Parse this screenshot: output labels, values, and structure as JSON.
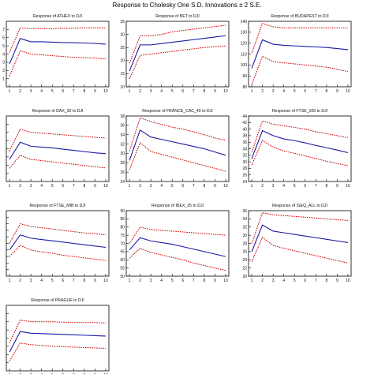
{
  "page_title": "Response to Cholesky One S.D. Innovations ± 2 S.E.",
  "chart_data": [
    {
      "type": "line",
      "title": "Response of ATHEX to DJI",
      "x": [
        1,
        2,
        3,
        4,
        5,
        6,
        7,
        8,
        9,
        10
      ],
      "xticks": [
        1,
        2,
        3,
        4,
        5,
        6,
        7,
        8,
        9,
        10
      ],
      "ylim": [
        0,
        8
      ],
      "yticks": [
        1,
        2,
        3,
        4,
        5,
        6,
        7
      ],
      "ytick_labels": [
        "1",
        "2",
        "3",
        "4",
        "5",
        "6",
        "7"
      ],
      "series": [
        {
          "role": "response",
          "color": "#1a1aa6",
          "style": "solid",
          "values": [
            2.8,
            5.9,
            5.5,
            5.5,
            5.45,
            5.4,
            5.38,
            5.35,
            5.3,
            5.2
          ]
        },
        {
          "role": "upper",
          "color": "#cc0000",
          "style": "dotted",
          "values": [
            4.2,
            7.2,
            7.1,
            7.1,
            7.1,
            7.15,
            7.15,
            7.2,
            7.2,
            7.2
          ]
        },
        {
          "role": "lower",
          "color": "#cc0000",
          "style": "dotted",
          "values": [
            1.3,
            4.4,
            4.0,
            3.9,
            3.8,
            3.7,
            3.6,
            3.55,
            3.5,
            3.4
          ]
        }
      ]
    },
    {
      "type": "line",
      "title": "Response of BET to DJI",
      "x": [
        1,
        2,
        3,
        4,
        5,
        6,
        7,
        8,
        9,
        10
      ],
      "xticks": [
        1,
        2,
        3,
        4,
        5,
        6,
        7,
        8,
        9,
        10
      ],
      "ylim": [
        10,
        35
      ],
      "yticks": [
        10,
        15,
        20,
        25,
        30,
        35
      ],
      "ytick_labels": [
        "10",
        "15",
        "20",
        "25",
        "30",
        "35"
      ],
      "series": [
        {
          "role": "response",
          "color": "#1a1aa6",
          "style": "solid",
          "values": [
            16,
            26,
            26,
            26.5,
            27,
            27.5,
            28,
            28.5,
            29,
            29.5
          ]
        },
        {
          "role": "upper",
          "color": "#cc0000",
          "style": "dotted",
          "values": [
            19,
            29.5,
            29.5,
            30,
            31,
            31.5,
            32,
            32.5,
            33,
            33.5
          ]
        },
        {
          "role": "lower",
          "color": "#cc0000",
          "style": "dotted",
          "values": [
            13,
            22,
            22.5,
            23,
            23.5,
            24,
            24.5,
            25,
            25.3,
            25.6
          ]
        }
      ]
    },
    {
      "type": "line",
      "title": "Response of BUDAPEST to DJI",
      "x": [
        1,
        2,
        3,
        4,
        5,
        6,
        7,
        8,
        9,
        10
      ],
      "xticks": [
        1,
        2,
        3,
        4,
        5,
        6,
        7,
        8,
        9,
        10
      ],
      "ylim": [
        80,
        140
      ],
      "yticks": [
        80,
        90,
        100,
        110,
        120,
        130,
        140
      ],
      "ytick_labels": [
        "80",
        "90",
        "100",
        "110",
        "120",
        "130",
        "140"
      ],
      "series": [
        {
          "role": "response",
          "color": "#1a1aa6",
          "style": "solid",
          "values": [
            97,
            123,
            119,
            118,
            117.5,
            117,
            116.5,
            116,
            115,
            114
          ]
        },
        {
          "role": "upper",
          "color": "#cc0000",
          "style": "dotted",
          "values": [
            111,
            138,
            135,
            134,
            134,
            134,
            134,
            134,
            134,
            134
          ]
        },
        {
          "role": "lower",
          "color": "#cc0000",
          "style": "dotted",
          "values": [
            82,
            108,
            103,
            102,
            101,
            100,
            99,
            98,
            96,
            94
          ]
        }
      ]
    },
    {
      "type": "line",
      "title": "Response of DAX_30 to DJI",
      "x": [
        1,
        2,
        3,
        4,
        5,
        6,
        7,
        8,
        9,
        10
      ],
      "xticks": [
        1,
        2,
        3,
        4,
        5,
        6,
        7,
        8,
        9,
        10
      ],
      "ylim": [
        0,
        8
      ],
      "yticks": [
        1,
        2,
        3,
        4,
        5,
        6,
        7
      ],
      "ytick_labels": [
        "",
        "",
        "",
        "",
        "",
        "",
        ""
      ],
      "series": [
        {
          "role": "response",
          "color": "#1a1aa6",
          "style": "solid",
          "values": [
            2.7,
            4.8,
            4.3,
            4.2,
            4.1,
            3.95,
            3.8,
            3.65,
            3.5,
            3.4
          ]
        },
        {
          "role": "upper",
          "color": "#cc0000",
          "style": "dotted",
          "values": [
            3.7,
            6.4,
            6.0,
            5.9,
            5.8,
            5.7,
            5.6,
            5.5,
            5.4,
            5.3
          ]
        },
        {
          "role": "lower",
          "color": "#cc0000",
          "style": "dotted",
          "values": [
            1.6,
            3.2,
            2.7,
            2.55,
            2.4,
            2.25,
            2.1,
            1.95,
            1.8,
            1.65
          ]
        }
      ]
    },
    {
      "type": "line",
      "title": "Response of FRANCE_CAC_40 to DJI",
      "x": [
        1,
        2,
        3,
        4,
        5,
        6,
        7,
        8,
        9,
        10
      ],
      "xticks": [
        1,
        2,
        3,
        4,
        5,
        6,
        7,
        8,
        9,
        10
      ],
      "ylim": [
        24,
        38
      ],
      "yticks": [
        24,
        26,
        28,
        30,
        32,
        34,
        36,
        38
      ],
      "ytick_labels": [
        "24",
        "26",
        "28",
        "30",
        "32",
        "34",
        "36",
        "38"
      ],
      "series": [
        {
          "role": "response",
          "color": "#1a1aa6",
          "style": "solid",
          "values": [
            28.5,
            35,
            33.5,
            33,
            32.5,
            32,
            31.5,
            31,
            30.3,
            29.6
          ]
        },
        {
          "role": "upper",
          "color": "#cc0000",
          "style": "dotted",
          "values": [
            30.5,
            37.6,
            36.8,
            36.2,
            35.6,
            35.2,
            34.6,
            34,
            33.3,
            32.8
          ]
        },
        {
          "role": "lower",
          "color": "#cc0000",
          "style": "dotted",
          "values": [
            26.5,
            32.3,
            30.4,
            29.8,
            29.2,
            28.6,
            28,
            27.4,
            26.8,
            26.2
          ]
        }
      ]
    },
    {
      "type": "line",
      "title": "Response of FTSE_100 to DJI",
      "x": [
        1,
        2,
        3,
        4,
        5,
        6,
        7,
        8,
        9,
        10
      ],
      "xticks": [
        1,
        2,
        3,
        4,
        5,
        6,
        7,
        8,
        9,
        10
      ],
      "ylim": [
        24,
        44
      ],
      "yticks": [
        24,
        26,
        28,
        30,
        32,
        34,
        36,
        38,
        40,
        42,
        44
      ],
      "ytick_labels": [
        "24",
        "26",
        "28",
        "30",
        "32",
        "34",
        "36",
        "38",
        "40",
        "42",
        "44"
      ],
      "series": [
        {
          "role": "response",
          "color": "#1a1aa6",
          "style": "solid",
          "values": [
            31,
            39.5,
            38,
            37,
            36.5,
            35.8,
            35,
            34.3,
            33.6,
            32.8
          ]
        },
        {
          "role": "upper",
          "color": "#cc0000",
          "style": "dotted",
          "values": [
            33,
            42.5,
            41.5,
            41,
            40.5,
            40,
            39.2,
            38.6,
            38,
            37.4
          ]
        },
        {
          "role": "lower",
          "color": "#cc0000",
          "style": "dotted",
          "values": [
            29,
            36.5,
            34.5,
            33.3,
            32.6,
            31.8,
            31,
            30.2,
            29.5,
            28.8
          ]
        }
      ]
    },
    {
      "type": "line",
      "title": "Response of FTSE_MIB to DJI",
      "x": [
        1,
        2,
        3,
        4,
        5,
        6,
        7,
        8,
        9,
        10
      ],
      "xticks": [
        1,
        2,
        3,
        4,
        5,
        6,
        7,
        8,
        9,
        10
      ],
      "ylim": [
        0,
        10
      ],
      "yticks": [
        1,
        2,
        3,
        4,
        5,
        6,
        7,
        8,
        9
      ],
      "ytick_labels": [
        "",
        "",
        "",
        "",
        "",
        "",
        "",
        "",
        ""
      ],
      "series": [
        {
          "role": "response",
          "color": "#1a1aa6",
          "style": "solid",
          "values": [
            4.0,
            6.3,
            5.8,
            5.6,
            5.4,
            5.2,
            5.0,
            4.8,
            4.6,
            4.4
          ]
        },
        {
          "role": "upper",
          "color": "#cc0000",
          "style": "dotted",
          "values": [
            5.0,
            8.0,
            7.6,
            7.4,
            7.2,
            7.0,
            6.8,
            6.6,
            6.5,
            6.3
          ]
        },
        {
          "role": "lower",
          "color": "#cc0000",
          "style": "dotted",
          "values": [
            3.0,
            4.7,
            4.0,
            3.7,
            3.5,
            3.2,
            3.0,
            2.8,
            2.6,
            2.4
          ]
        }
      ]
    },
    {
      "type": "line",
      "title": "Response of IBEX_35 to DJI",
      "x": [
        1,
        2,
        3,
        4,
        5,
        6,
        7,
        8,
        9,
        10
      ],
      "xticks": [
        1,
        2,
        3,
        4,
        5,
        6,
        7,
        8,
        9,
        10
      ],
      "ylim": [
        50,
        90
      ],
      "yticks": [
        50,
        55,
        60,
        65,
        70,
        75,
        80,
        85,
        90
      ],
      "ytick_labels": [
        "50",
        "55",
        "60",
        "65",
        "70",
        "75",
        "80",
        "85",
        "90"
      ],
      "series": [
        {
          "role": "response",
          "color": "#1a1aa6",
          "style": "solid",
          "values": [
            66,
            73.5,
            71.5,
            70.5,
            69.5,
            68,
            66.5,
            65,
            63.5,
            62
          ]
        },
        {
          "role": "upper",
          "color": "#cc0000",
          "style": "dotted",
          "values": [
            70,
            80,
            78.5,
            78,
            77.5,
            77,
            76.5,
            76,
            75.5,
            75
          ]
        },
        {
          "role": "lower",
          "color": "#cc0000",
          "style": "dotted",
          "values": [
            61,
            67,
            64.5,
            63,
            61.5,
            60,
            58,
            56.5,
            55,
            53.5
          ]
        }
      ]
    },
    {
      "type": "line",
      "title": "Response of ISEQ_ALL to DJI",
      "x": [
        1,
        2,
        3,
        4,
        5,
        6,
        7,
        8,
        9,
        10
      ],
      "xticks": [
        1,
        2,
        3,
        4,
        5,
        6,
        7,
        8,
        9,
        10
      ],
      "ylim": [
        20,
        36
      ],
      "yticks": [
        20,
        22,
        24,
        26,
        28,
        30,
        32,
        34,
        36
      ],
      "ytick_labels": [
        "20",
        "22",
        "24",
        "26",
        "28",
        "30",
        "32",
        "34",
        "36"
      ],
      "series": [
        {
          "role": "response",
          "color": "#1a1aa6",
          "style": "solid",
          "values": [
            26,
            32.5,
            31,
            30.6,
            30.2,
            29.8,
            29.4,
            29,
            28.6,
            28.2
          ]
        },
        {
          "role": "upper",
          "color": "#cc0000",
          "style": "dotted",
          "values": [
            28,
            35.5,
            35,
            34.8,
            34.6,
            34.4,
            34.2,
            34,
            33.8,
            33.6
          ]
        },
        {
          "role": "lower",
          "color": "#cc0000",
          "style": "dotted",
          "values": [
            23.5,
            29.5,
            27.5,
            26.8,
            26.2,
            25.6,
            25,
            24.4,
            23.8,
            23.2
          ]
        }
      ]
    },
    {
      "type": "line",
      "title": "Response of PRAGUE to DJI",
      "x": [
        1,
        2,
        3,
        4,
        5,
        6,
        7,
        8,
        9,
        10
      ],
      "xticks": [
        1,
        2,
        3,
        4,
        5,
        6,
        7,
        8,
        9,
        10
      ],
      "ylim": [
        0,
        8
      ],
      "yticks": [
        1,
        2,
        3,
        4,
        5,
        6,
        7
      ],
      "ytick_labels": [
        "",
        "",
        "",
        "",
        "",
        "",
        ""
      ],
      "series": [
        {
          "role": "response",
          "color": "#1a1aa6",
          "style": "solid",
          "values": [
            2.3,
            4.8,
            4.6,
            4.55,
            4.5,
            4.45,
            4.4,
            4.35,
            4.3,
            4.25
          ]
        },
        {
          "role": "upper",
          "color": "#cc0000",
          "style": "dotted",
          "values": [
            3.4,
            6.2,
            6.0,
            6.0,
            6.0,
            5.95,
            5.9,
            5.9,
            5.9,
            5.85
          ]
        },
        {
          "role": "lower",
          "color": "#cc0000",
          "style": "dotted",
          "values": [
            1.2,
            3.4,
            3.2,
            3.1,
            3.0,
            2.95,
            2.9,
            2.85,
            2.8,
            2.75
          ]
        }
      ]
    }
  ]
}
